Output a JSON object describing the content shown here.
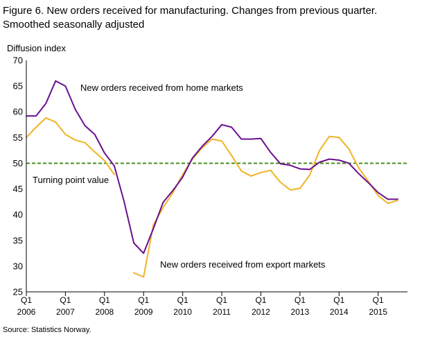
{
  "title_line1": "Figure 6. New orders received for manufacturing. Changes from previous quarter.",
  "title_line2": "Smoothed seasonally adjusted",
  "source": "Source: Statistics Norway.",
  "chart_data": {
    "type": "line",
    "ylabel": "Diffusion  index",
    "ylim": [
      25,
      70
    ],
    "yticks": [
      25,
      30,
      35,
      40,
      45,
      50,
      55,
      60,
      65,
      70
    ],
    "xlim": [
      2006.0,
      2015.75
    ],
    "xticks": [
      {
        "q": "Q1",
        "year": "2006",
        "x": 2006.0
      },
      {
        "q": "Q1",
        "year": "2007",
        "x": 2007.0
      },
      {
        "q": "Q1",
        "year": "2008",
        "x": 2008.0
      },
      {
        "q": "Q1",
        "year": "2009",
        "x": 2009.0
      },
      {
        "q": "Q1",
        "year": "2010",
        "x": 2010.0
      },
      {
        "q": "Q1",
        "year": "2011",
        "x": 2011.0
      },
      {
        "q": "Q1",
        "year": "2012",
        "x": 2012.0
      },
      {
        "q": "Q1",
        "year": "2013",
        "x": 2013.0
      },
      {
        "q": "Q1",
        "year": "2014",
        "x": 2014.0
      },
      {
        "q": "Q1",
        "year": "2015",
        "x": 2015.0
      }
    ],
    "grid": false,
    "reference_line": {
      "y": 50,
      "label": "Turning  point value",
      "color": "#4a8c1c"
    },
    "series": [
      {
        "name": "New orders  received  from home markets",
        "color": "#6a0f8e",
        "x": [
          2006.0,
          2006.25,
          2006.5,
          2006.75,
          2007.0,
          2007.25,
          2007.5,
          2007.75,
          2008.0,
          2008.25,
          2008.5,
          2008.75,
          2009.0,
          2009.25,
          2009.5,
          2009.75,
          2010.0,
          2010.25,
          2010.5,
          2010.75,
          2011.0,
          2011.25,
          2011.5,
          2011.75,
          2012.0,
          2012.25,
          2012.5,
          2012.75,
          2013.0,
          2013.25,
          2013.5,
          2013.75,
          2014.0,
          2014.25,
          2014.5,
          2014.75,
          2015.0,
          2015.25,
          2015.5
        ],
        "values": [
          59.2,
          59.2,
          61.6,
          66.0,
          65.0,
          60.5,
          57.3,
          55.6,
          52.0,
          49.5,
          42.6,
          34.5,
          32.5,
          37.3,
          42.4,
          44.7,
          47.3,
          51.0,
          53.3,
          55.2,
          57.5,
          57.0,
          54.7,
          54.7,
          54.8,
          52.1,
          49.9,
          49.6,
          48.9,
          48.8,
          50.2,
          50.8,
          50.6,
          50.0,
          48.0,
          46.2,
          44.3,
          43.0,
          43.0
        ]
      },
      {
        "name": "New orders  received  from export markets",
        "color": "#f0b323",
        "x": [
          2006.0,
          2006.25,
          2006.5,
          2006.75,
          2007.0,
          2007.25,
          2007.5,
          2007.75,
          2008.0,
          2008.25,
          2008.5,
          2008.75,
          2009.0,
          2009.25,
          2009.5,
          2009.75,
          2010.0,
          2010.25,
          2010.5,
          2010.75,
          2011.0,
          2011.25,
          2011.5,
          2011.75,
          2012.0,
          2012.25,
          2012.5,
          2012.75,
          2013.0,
          2013.25,
          2013.5,
          2013.75,
          2014.0,
          2014.25,
          2014.5,
          2014.75,
          2015.0,
          2015.25,
          2015.5
        ],
        "values": [
          55.0,
          57.0,
          58.8,
          58.0,
          55.6,
          54.5,
          54.0,
          52.2,
          50.5,
          47.8,
          null,
          28.7,
          27.9,
          38.0,
          41.4,
          44.3,
          47.8,
          50.8,
          53.0,
          54.7,
          54.3,
          51.5,
          48.5,
          47.5,
          48.2,
          48.6,
          46.3,
          44.8,
          45.1,
          47.7,
          52.5,
          55.2,
          55.0,
          52.8,
          49.1,
          46.5,
          43.7,
          42.2,
          42.8
        ]
      }
    ],
    "annotations": [
      {
        "text": "New orders  received  from home markets"
      },
      {
        "text": "New orders  received  from export markets"
      }
    ]
  }
}
